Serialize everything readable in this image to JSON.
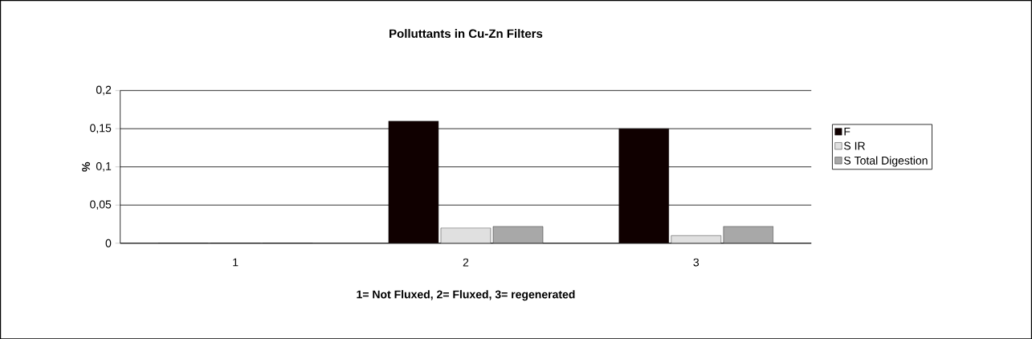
{
  "chart_data": {
    "type": "bar",
    "title": "Polluttants in Cu-Zn Filters",
    "xlabel": "1= Not Fluxed, 2= Fluxed, 3= regenerated",
    "ylabel": "%",
    "categories": [
      "1",
      "2",
      "3"
    ],
    "series": [
      {
        "name": "F",
        "color": "#100000",
        "values": [
          0,
          0.16,
          0.15
        ]
      },
      {
        "name": "S IR",
        "color": "#e0e0e0",
        "values": [
          0,
          0.02,
          0.01
        ]
      },
      {
        "name": "S Total Digestion",
        "color": "#a8a8a8",
        "values": [
          0,
          0.022,
          0.022
        ]
      }
    ],
    "ylim": [
      0,
      0.2
    ],
    "yticks": [
      0,
      {
        "value": 0.05,
        "label": "0,05"
      },
      {
        "value": 0.1,
        "label": "0,1"
      },
      {
        "value": 0.15,
        "label": "0,15"
      },
      {
        "value": 0.2,
        "label": "0,2"
      }
    ],
    "grid": "y",
    "legend": "right"
  }
}
